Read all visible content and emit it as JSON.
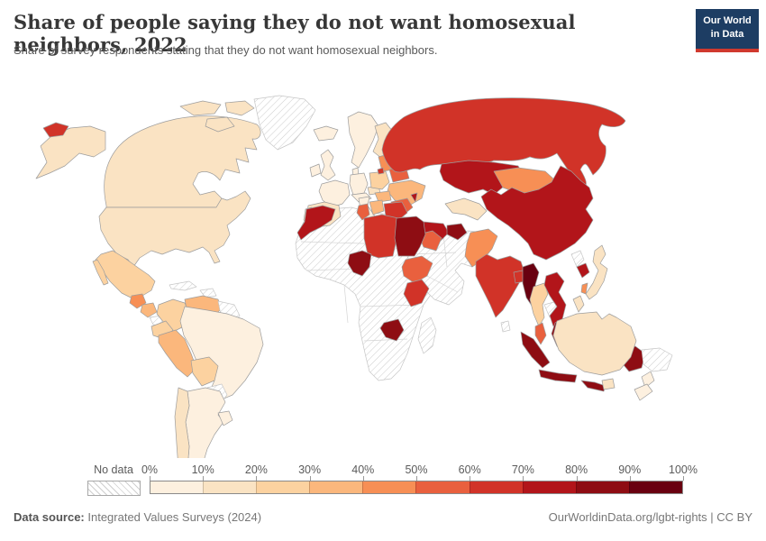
{
  "header": {
    "title": "Share of people saying they do not want homosexual neighbors, 2022",
    "subtitle": "Share of survey respondents stating that they do not want homosexual neighbors.",
    "logo": {
      "line1": "Our World",
      "line2": "in Data",
      "bg_color": "#1d3d63",
      "accent_color": "#d0392e"
    }
  },
  "footer": {
    "source_label": "Data source:",
    "source_value": " Integrated Values Surveys (2024)",
    "right_text": "OurWorldinData.org/lgbt-rights | CC BY"
  },
  "chart_data": {
    "type": "choropleth-map",
    "title": "Share of people saying they do not want homosexual neighbors",
    "year": 2022,
    "unit": "%",
    "projection": "world",
    "legend": {
      "no_data_label": "No data",
      "tick_labels": [
        "0%",
        "10%",
        "20%",
        "30%",
        "40%",
        "50%",
        "60%",
        "70%",
        "80%",
        "90%",
        "100%"
      ],
      "bucket_colors": [
        "#fdf0df",
        "#fae3c3",
        "#fcd2a0",
        "#fbb77c",
        "#f78f55",
        "#e9603e",
        "#d13328",
        "#b2151a",
        "#8e0d13",
        "#690010"
      ],
      "no_data_border": "#c6c6c6",
      "country_border": "#9d9d9d"
    },
    "countries": [
      {
        "id": "usa",
        "name": "United States",
        "value": "10-20%"
      },
      {
        "id": "canada",
        "name": "Canada",
        "value": "10-20%"
      },
      {
        "id": "greenland",
        "name": "Greenland",
        "value": "No data"
      },
      {
        "id": "mexico",
        "name": "Mexico",
        "value": "20-30%"
      },
      {
        "id": "guatemala",
        "name": "Guatemala",
        "value": "40-50%"
      },
      {
        "id": "nicaragua",
        "name": "Nicaragua",
        "value": "30-40%"
      },
      {
        "id": "central-america-nd",
        "name": "Costa Rica / Panama",
        "value": "No data"
      },
      {
        "id": "cuba",
        "name": "Cuba",
        "value": "No data"
      },
      {
        "id": "hispaniola",
        "name": "Haiti / Dominican Rep.",
        "value": "No data"
      },
      {
        "id": "colombia",
        "name": "Colombia",
        "value": "20-30%"
      },
      {
        "id": "venezuela",
        "name": "Venezuela",
        "value": "30-40%"
      },
      {
        "id": "guyana-suriname",
        "name": "Guyana / Suriname",
        "value": "No data"
      },
      {
        "id": "ecuador",
        "name": "Ecuador",
        "value": "20-30%"
      },
      {
        "id": "peru",
        "name": "Peru",
        "value": "30-40%"
      },
      {
        "id": "brazil",
        "name": "Brazil",
        "value": "0-10%"
      },
      {
        "id": "bolivia",
        "name": "Bolivia",
        "value": "20-30%"
      },
      {
        "id": "paraguay",
        "name": "Paraguay",
        "value": "No data"
      },
      {
        "id": "chile",
        "name": "Chile",
        "value": "10-20%"
      },
      {
        "id": "argentina",
        "name": "Argentina",
        "value": "0-10%"
      },
      {
        "id": "uruguay",
        "name": "Uruguay",
        "value": "0-10%"
      },
      {
        "id": "iceland",
        "name": "Iceland",
        "value": "0-10%"
      },
      {
        "id": "uk",
        "name": "United Kingdom",
        "value": "0-10%"
      },
      {
        "id": "ireland",
        "name": "Ireland",
        "value": "0-10%"
      },
      {
        "id": "scandinavia",
        "name": "Norway / Sweden",
        "value": "0-10%"
      },
      {
        "id": "finland",
        "name": "Finland",
        "value": "10-20%"
      },
      {
        "id": "denmark",
        "name": "Denmark",
        "value": "0-10%"
      },
      {
        "id": "germany",
        "name": "Germany",
        "value": "0-10%"
      },
      {
        "id": "france",
        "name": "France",
        "value": "0-10%"
      },
      {
        "id": "spain",
        "name": "Spain",
        "value": "10-20%"
      },
      {
        "id": "portugal",
        "name": "Portugal",
        "value": "10-20%"
      },
      {
        "id": "italy",
        "name": "Italy",
        "value": "0-10%"
      },
      {
        "id": "alpine",
        "name": "Switzerland / Austria",
        "value": "0-10%"
      },
      {
        "id": "czechia",
        "name": "Czechia",
        "value": "10-20%"
      },
      {
        "id": "poland",
        "name": "Poland",
        "value": "20-30%"
      },
      {
        "id": "baltics",
        "name": "Baltic states",
        "value": "40-50%"
      },
      {
        "id": "belarus",
        "name": "Belarus",
        "value": "50-60%"
      },
      {
        "id": "ukraine",
        "name": "Ukraine",
        "value": "30-40%"
      },
      {
        "id": "moldova",
        "name": "Moldova",
        "value": "70-80%"
      },
      {
        "id": "romania",
        "name": "Romania",
        "value": "50-60%"
      },
      {
        "id": "hungary-slovakia",
        "name": "Hungary / Slovakia",
        "value": "30-40%"
      },
      {
        "id": "croatia-bosnia",
        "name": "Croatia / Bosnia",
        "value": "30-40%"
      },
      {
        "id": "serbia-bulgaria",
        "name": "Serbia / Bulgaria",
        "value": "60-70%"
      },
      {
        "id": "albania-macedonia",
        "name": "Albania / N. Macedonia",
        "value": "70-80%"
      },
      {
        "id": "greece",
        "name": "Greece",
        "value": "40-50%"
      },
      {
        "id": "russia",
        "name": "Russia",
        "value": "60-70%"
      },
      {
        "id": "turkey",
        "name": "Turkey",
        "value": "70-80%"
      },
      {
        "id": "armenia-azerbaijan",
        "name": "Armenia / Azerbaijan",
        "value": "80-90%"
      },
      {
        "id": "kazakhstan",
        "name": "Kazakhstan",
        "value": "70-80%"
      },
      {
        "id": "uzbekistan",
        "name": "Uzbekistan",
        "value": "10-20%"
      },
      {
        "id": "kyrgyz-tajik",
        "name": "Kyrgyzstan / Tajikistan",
        "value": "80-90%"
      },
      {
        "id": "mongolia",
        "name": "Mongolia",
        "value": "40-50%"
      },
      {
        "id": "china",
        "name": "China",
        "value": "70-80%"
      },
      {
        "id": "iraq",
        "name": "Iraq",
        "value": "50-60%"
      },
      {
        "id": "lebanon",
        "name": "Lebanon",
        "value": "70-80%"
      },
      {
        "id": "mideast-nd",
        "name": "Middle East (Iran, Saudi Arabia, Syria, Afghanistan, Turkmenistan)",
        "value": "No data"
      },
      {
        "id": "pakistan",
        "name": "Pakistan",
        "value": "40-50%"
      },
      {
        "id": "india",
        "name": "India",
        "value": "60-70%"
      },
      {
        "id": "bangladesh",
        "name": "Bangladesh",
        "value": "60-70%"
      },
      {
        "id": "sri-lanka",
        "name": "Sri Lanka",
        "value": "No data"
      },
      {
        "id": "myanmar",
        "name": "Myanmar",
        "value": "90-100%"
      },
      {
        "id": "thailand",
        "name": "Thailand",
        "value": "20-30%"
      },
      {
        "id": "cambodia",
        "name": "Cambodia",
        "value": "No data"
      },
      {
        "id": "vietnam",
        "name": "Vietnam",
        "value": "70-80%"
      },
      {
        "id": "malaysia",
        "name": "Malaysia (peninsula)",
        "value": "50-60%"
      },
      {
        "id": "indonesia",
        "name": "Indonesia",
        "value": "80-90%"
      },
      {
        "id": "philippines",
        "name": "Philippines",
        "value": "10-20%"
      },
      {
        "id": "taiwan",
        "name": "Taiwan",
        "value": "40-50%"
      },
      {
        "id": "north-korea",
        "name": "North Korea",
        "value": "No data"
      },
      {
        "id": "south-korea",
        "name": "South Korea",
        "value": "70-80%"
      },
      {
        "id": "japan",
        "name": "Japan",
        "value": "10-20%"
      },
      {
        "id": "morocco",
        "name": "Morocco",
        "value": "70-80%"
      },
      {
        "id": "tunisia",
        "name": "Tunisia",
        "value": "50-60%"
      },
      {
        "id": "libya",
        "name": "Libya",
        "value": "60-70%"
      },
      {
        "id": "egypt",
        "name": "Egypt",
        "value": "80-90%"
      },
      {
        "id": "nigeria",
        "name": "Nigeria",
        "value": "80-90%"
      },
      {
        "id": "ethiopia",
        "name": "Ethiopia",
        "value": "50-60%"
      },
      {
        "id": "kenya",
        "name": "Kenya",
        "value": "60-70%"
      },
      {
        "id": "zimbabwe",
        "name": "Zimbabwe",
        "value": "80-90%"
      },
      {
        "id": "africa-nd",
        "name": "Rest of Africa",
        "value": "No data"
      },
      {
        "id": "madagascar",
        "name": "Madagascar",
        "value": "No data"
      },
      {
        "id": "australia",
        "name": "Australia",
        "value": "10-20%"
      },
      {
        "id": "new-zealand",
        "name": "New Zealand",
        "value": "0-10%"
      },
      {
        "id": "png",
        "name": "Papua New Guinea",
        "value": "No data"
      }
    ]
  }
}
